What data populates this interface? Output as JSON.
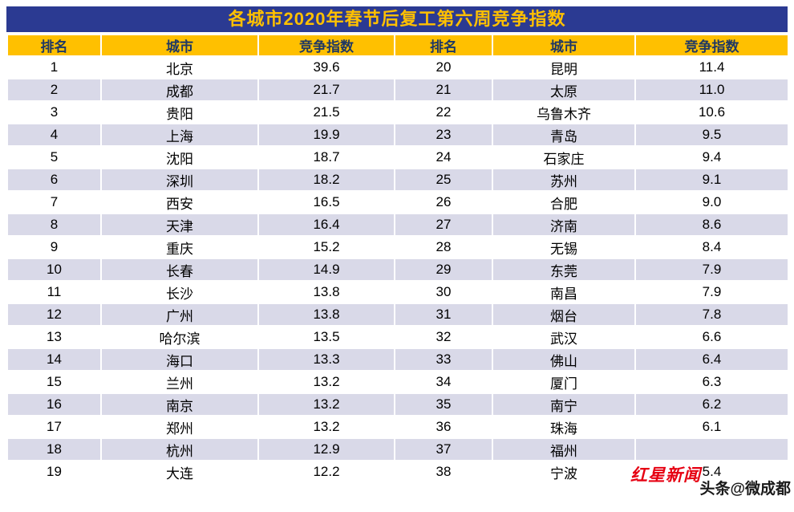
{
  "chart_data": {
    "type": "table",
    "title": "各城市2020年春节后复工第六周竞争指数",
    "columns": [
      "排名",
      "城市",
      "竞争指数"
    ],
    "rows": [
      [
        1,
        "北京",
        39.6
      ],
      [
        2,
        "成都",
        21.7
      ],
      [
        3,
        "贵阳",
        21.5
      ],
      [
        4,
        "上海",
        19.9
      ],
      [
        5,
        "沈阳",
        18.7
      ],
      [
        6,
        "深圳",
        18.2
      ],
      [
        7,
        "西安",
        16.5
      ],
      [
        8,
        "天津",
        16.4
      ],
      [
        9,
        "重庆",
        15.2
      ],
      [
        10,
        "长春",
        14.9
      ],
      [
        11,
        "长沙",
        13.8
      ],
      [
        12,
        "广州",
        13.8
      ],
      [
        13,
        "哈尔滨",
        13.5
      ],
      [
        14,
        "海口",
        13.3
      ],
      [
        15,
        "兰州",
        13.2
      ],
      [
        16,
        "南京",
        13.2
      ],
      [
        17,
        "郑州",
        13.2
      ],
      [
        18,
        "杭州",
        12.9
      ],
      [
        19,
        "大连",
        12.2
      ],
      [
        20,
        "昆明",
        11.4
      ],
      [
        21,
        "太原",
        11.0
      ],
      [
        22,
        "乌鲁木齐",
        10.6
      ],
      [
        23,
        "青岛",
        9.5
      ],
      [
        24,
        "石家庄",
        9.4
      ],
      [
        25,
        "苏州",
        9.1
      ],
      [
        26,
        "合肥",
        9.0
      ],
      [
        27,
        "济南",
        8.6
      ],
      [
        28,
        "无锡",
        8.4
      ],
      [
        29,
        "东莞",
        7.9
      ],
      [
        30,
        "南昌",
        7.9
      ],
      [
        31,
        "烟台",
        7.8
      ],
      [
        32,
        "武汉",
        6.6
      ],
      [
        33,
        "佛山",
        6.4
      ],
      [
        34,
        "厦门",
        6.3
      ],
      [
        35,
        "南宁",
        6.2
      ],
      [
        36,
        "珠海",
        6.1
      ],
      [
        37,
        "福州",
        null
      ],
      [
        38,
        "宁波",
        5.4
      ]
    ],
    "layout": {
      "split_into_two_column_blocks": true,
      "rows_per_block": 19
    }
  },
  "watermark": {
    "logo": "红星新闻",
    "credit": "头条@微成都"
  },
  "colors": {
    "title_bg": "#2b3a92",
    "title_text": "#ffc000",
    "header_bg": "#ffc000",
    "header_text": "#1f3864",
    "band_row": "#d9d9e8",
    "logo_red": "#e60012"
  }
}
